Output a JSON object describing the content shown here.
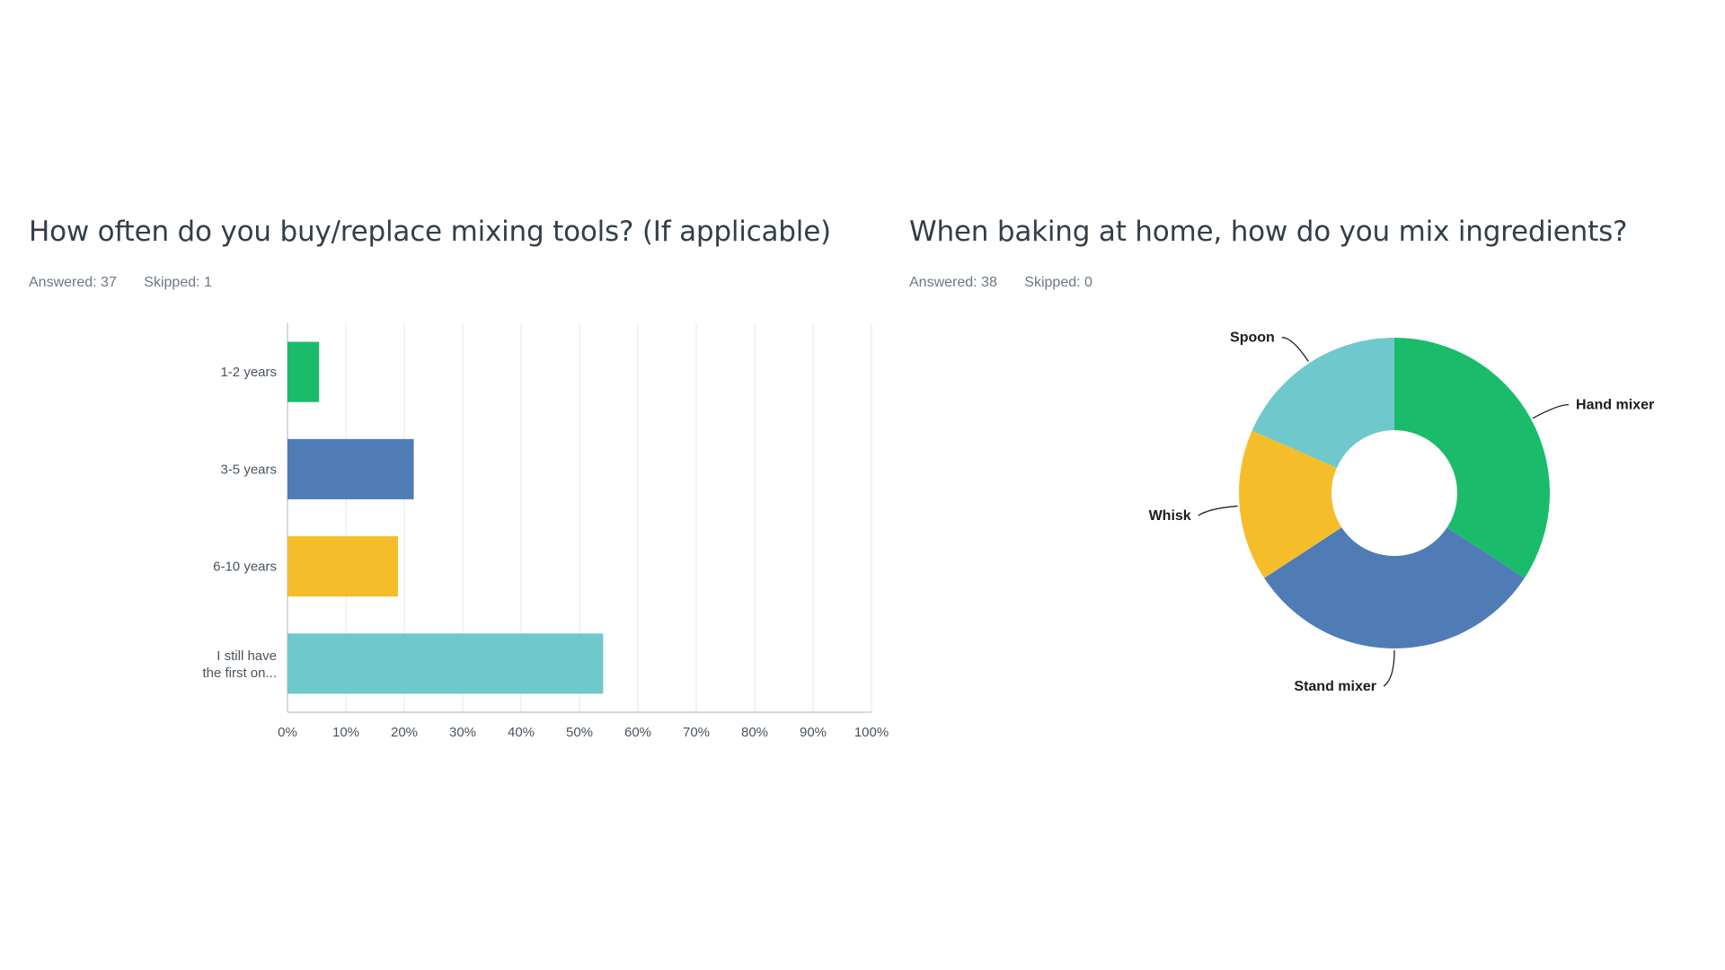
{
  "charts": {
    "left": {
      "title": "How often do you buy/replace mixing tools? (If applicable)",
      "answered": "Answered: 37",
      "skipped": "Skipped: 1"
    },
    "right": {
      "title": "When baking at home, how do you mix ingredients?",
      "answered": "Answered: 38",
      "skipped": "Skipped: 0"
    }
  },
  "chart_data": [
    {
      "type": "bar",
      "orientation": "horizontal",
      "title": "How often do you buy/replace mixing tools? (If applicable)",
      "categories": [
        [
          "1-2 years"
        ],
        [
          "3-5 years"
        ],
        [
          "6-10 years"
        ],
        [
          "I still have",
          "the first on..."
        ]
      ],
      "values": [
        5.41,
        21.62,
        18.92,
        54.05
      ],
      "colors": [
        "#1abc6b",
        "#507cb6",
        "#f6bd2b",
        "#6fc8cb"
      ],
      "xlim": [
        0,
        100
      ],
      "ticks": [
        "0%",
        "10%",
        "20%",
        "30%",
        "40%",
        "50%",
        "60%",
        "70%",
        "80%",
        "90%",
        "100%"
      ],
      "grid": true
    },
    {
      "type": "pie",
      "variant": "donut",
      "title": "When baking at home, how do you mix ingredients?",
      "labels": [
        "Hand mixer",
        "Stand mixer",
        "Whisk",
        "Spoon"
      ],
      "values": [
        34.21,
        31.58,
        15.79,
        18.42
      ],
      "colors": [
        "#1abc6b",
        "#507cb6",
        "#f6bd2b",
        "#6fc8cb"
      ]
    }
  ]
}
